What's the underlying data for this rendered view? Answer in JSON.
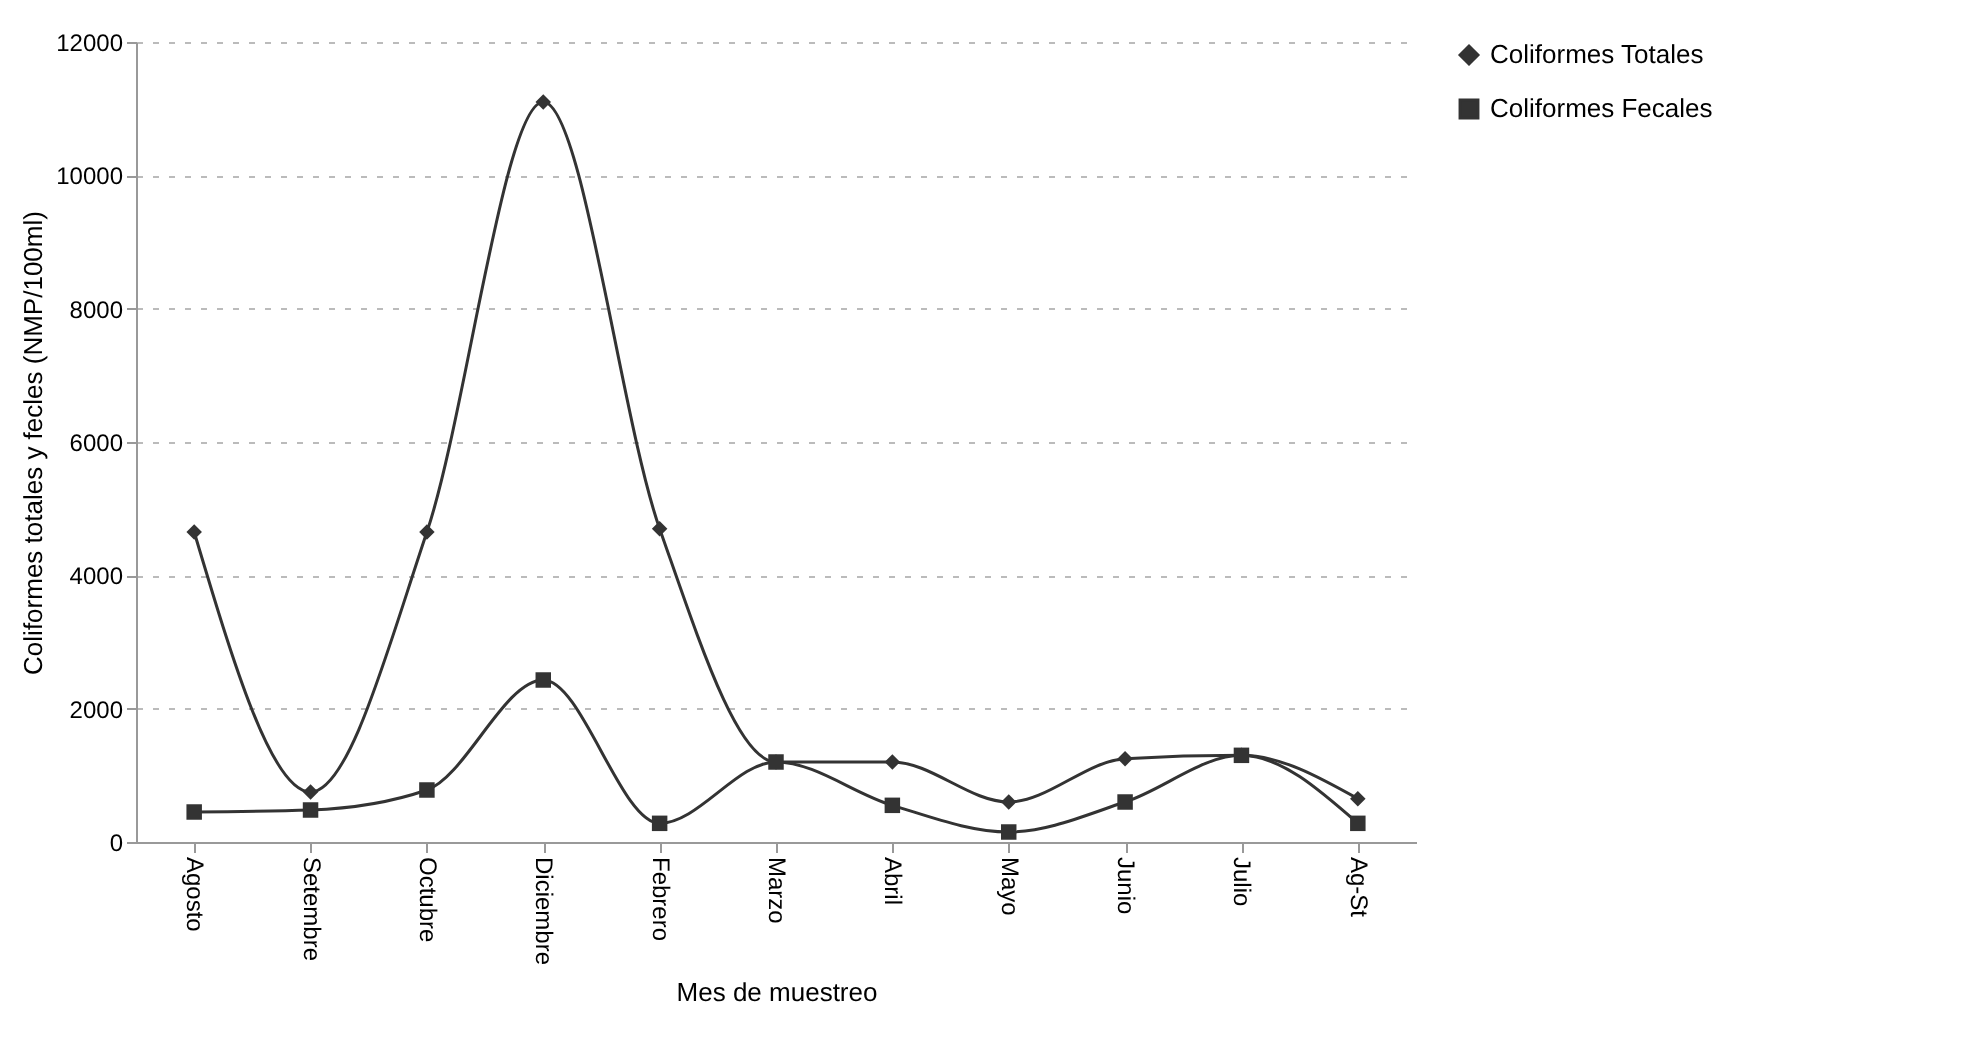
{
  "chart_data": {
    "type": "line",
    "xlabel": "Mes de muestreo",
    "ylabel": "Coliformes totales y fecles (NMP/100ml)",
    "categories": [
      "Agosto",
      "Setembre",
      "Octubre",
      "Diciembre",
      "Febrero",
      "Marzo",
      "Abril",
      "Mayo",
      "Junio",
      "Julio",
      "Ag-St"
    ],
    "series": [
      {
        "name": "Coliformes Totales",
        "color": "#333333",
        "marker": "diamond",
        "values": [
          4650,
          750,
          4650,
          11100,
          4700,
          1200,
          1200,
          600,
          1250,
          1300,
          650
        ]
      },
      {
        "name": "Coliformes Fecales",
        "color": "#333333",
        "marker": "square",
        "values": [
          450,
          480,
          780,
          2430,
          280,
          1200,
          550,
          150,
          600,
          1300,
          280
        ]
      }
    ],
    "ylim": [
      0,
      12000
    ],
    "yticks": [
      0,
      2000,
      4000,
      6000,
      8000,
      10000,
      12000
    ],
    "grid": "y",
    "legend": "right"
  }
}
